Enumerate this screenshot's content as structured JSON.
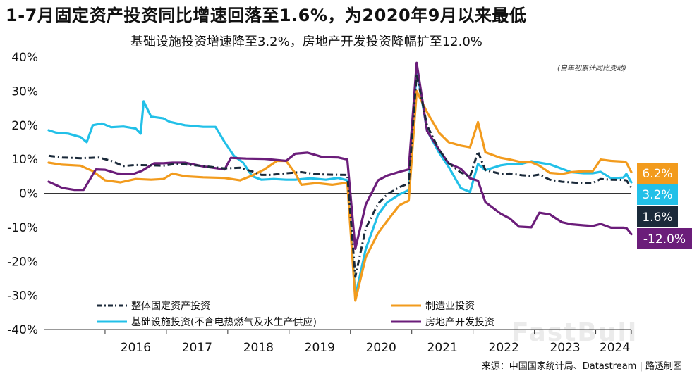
{
  "title": "1-7月固定资产投资同比增速回落至1.6%，为2020年9月以来最低",
  "subtitle": "基础设施投资增速降至3.2%，房地产开发投资降幅扩至12.0%",
  "note": "(自年初累计同比变动)",
  "source": "来源：中国国家统计局、Datastream | 路透制图",
  "watermark": "FastBull",
  "chart_data": {
    "type": "line",
    "y_unit": "%",
    "ylim": [
      -40,
      40
    ],
    "y_ticks": [
      "40%",
      "30%",
      "20%",
      "10%",
      "0%",
      "-10%",
      "-20%",
      "-30%",
      "-40%"
    ],
    "x_ticks": [
      "2016",
      "2017",
      "2018",
      "2019",
      "2020",
      "2021",
      "2022",
      "2023",
      "2024"
    ],
    "xlim": [
      2015.0,
      2024.58
    ],
    "grid": false,
    "legend_position": "bottom",
    "series": [
      {
        "name": "整体固定资产投资",
        "color": "#1b2a3a",
        "style": "dashdot",
        "end_label": "1.6%",
        "points": [
          [
            2015.08,
            11.0
          ],
          [
            2015.3,
            10.5
          ],
          [
            2015.6,
            10.3
          ],
          [
            2015.9,
            10.5
          ],
          [
            2016.1,
            9.5
          ],
          [
            2016.3,
            8.0
          ],
          [
            2016.5,
            8.3
          ],
          [
            2016.75,
            8.2
          ],
          [
            2016.95,
            8.1
          ],
          [
            2017.1,
            8.5
          ],
          [
            2017.3,
            8.5
          ],
          [
            2017.6,
            8.0
          ],
          [
            2017.95,
            7.3
          ],
          [
            2018.2,
            7.5
          ],
          [
            2018.4,
            6.4
          ],
          [
            2018.55,
            5.4
          ],
          [
            2018.7,
            5.4
          ],
          [
            2018.95,
            5.9
          ],
          [
            2019.2,
            6.2
          ],
          [
            2019.4,
            5.7
          ],
          [
            2019.6,
            5.5
          ],
          [
            2019.95,
            5.4
          ],
          [
            2020.08,
            -24.5
          ],
          [
            2020.25,
            -10.3
          ],
          [
            2020.45,
            -3.1
          ],
          [
            2020.6,
            -0.3
          ],
          [
            2020.8,
            1.8
          ],
          [
            2020.95,
            2.9
          ],
          [
            2021.08,
            35.0
          ],
          [
            2021.25,
            19.9
          ],
          [
            2021.45,
            12.6
          ],
          [
            2021.6,
            8.9
          ],
          [
            2021.8,
            6.1
          ],
          [
            2021.95,
            4.9
          ],
          [
            2022.08,
            12.2
          ],
          [
            2022.2,
            6.8
          ],
          [
            2022.45,
            5.7
          ],
          [
            2022.6,
            5.8
          ],
          [
            2022.8,
            5.3
          ],
          [
            2022.95,
            5.1
          ],
          [
            2023.08,
            5.5
          ],
          [
            2023.25,
            4.0
          ],
          [
            2023.45,
            3.4
          ],
          [
            2023.6,
            3.2
          ],
          [
            2023.8,
            2.9
          ],
          [
            2023.95,
            3.0
          ],
          [
            2024.08,
            4.2
          ],
          [
            2024.25,
            4.0
          ],
          [
            2024.45,
            3.9
          ],
          [
            2024.5,
            3.8
          ],
          [
            2024.58,
            1.6
          ]
        ]
      },
      {
        "name": "制造业投资",
        "color": "#f29b1d",
        "style": "solid",
        "end_label": "6.2%",
        "points": [
          [
            2015.08,
            9.0
          ],
          [
            2015.3,
            8.4
          ],
          [
            2015.6,
            8.1
          ],
          [
            2015.8,
            6.5
          ],
          [
            2016.0,
            3.8
          ],
          [
            2016.25,
            3.2
          ],
          [
            2016.5,
            4.2
          ],
          [
            2016.75,
            4.0
          ],
          [
            2016.95,
            4.2
          ],
          [
            2017.1,
            5.8
          ],
          [
            2017.3,
            5.0
          ],
          [
            2017.6,
            4.7
          ],
          [
            2017.95,
            4.5
          ],
          [
            2018.2,
            3.8
          ],
          [
            2018.4,
            5.2
          ],
          [
            2018.6,
            7.0
          ],
          [
            2018.8,
            9.5
          ],
          [
            2018.95,
            9.5
          ],
          [
            2019.1,
            5.9
          ],
          [
            2019.2,
            2.5
          ],
          [
            2019.45,
            3.0
          ],
          [
            2019.7,
            2.5
          ],
          [
            2019.95,
            3.1
          ],
          [
            2020.08,
            -31.5
          ],
          [
            2020.25,
            -18.8
          ],
          [
            2020.45,
            -11.7
          ],
          [
            2020.6,
            -8.1
          ],
          [
            2020.8,
            -3.5
          ],
          [
            2020.95,
            -2.2
          ],
          [
            2021.08,
            30.0
          ],
          [
            2021.25,
            23.8
          ],
          [
            2021.45,
            17.7
          ],
          [
            2021.6,
            15.0
          ],
          [
            2021.8,
            14.0
          ],
          [
            2021.95,
            13.5
          ],
          [
            2022.08,
            20.9
          ],
          [
            2022.2,
            12.0
          ],
          [
            2022.45,
            10.4
          ],
          [
            2022.6,
            9.9
          ],
          [
            2022.8,
            9.1
          ],
          [
            2022.95,
            9.1
          ],
          [
            2023.08,
            8.1
          ],
          [
            2023.25,
            6.0
          ],
          [
            2023.45,
            5.7
          ],
          [
            2023.6,
            6.2
          ],
          [
            2023.8,
            6.5
          ],
          [
            2023.95,
            6.5
          ],
          [
            2024.08,
            9.9
          ],
          [
            2024.25,
            9.5
          ],
          [
            2024.45,
            9.3
          ],
          [
            2024.5,
            9.0
          ],
          [
            2024.58,
            6.2
          ]
        ]
      },
      {
        "name": "基础设施投资(不含电热燃气及水生产供应)",
        "color": "#22c0e8",
        "style": "solid",
        "end_label": "3.2%",
        "points": [
          [
            2015.08,
            18.5
          ],
          [
            2015.2,
            17.8
          ],
          [
            2015.4,
            17.5
          ],
          [
            2015.6,
            16.5
          ],
          [
            2015.7,
            15.0
          ],
          [
            2015.8,
            20.0
          ],
          [
            2015.95,
            20.5
          ],
          [
            2016.1,
            19.4
          ],
          [
            2016.3,
            19.6
          ],
          [
            2016.5,
            19.0
          ],
          [
            2016.58,
            17.5
          ],
          [
            2016.63,
            27.0
          ],
          [
            2016.75,
            22.5
          ],
          [
            2016.95,
            22.0
          ],
          [
            2017.05,
            21.0
          ],
          [
            2017.3,
            20.0
          ],
          [
            2017.6,
            19.5
          ],
          [
            2017.8,
            19.5
          ],
          [
            2017.95,
            15.0
          ],
          [
            2018.1,
            11.0
          ],
          [
            2018.25,
            9.0
          ],
          [
            2018.4,
            5.0
          ],
          [
            2018.55,
            4.0
          ],
          [
            2018.75,
            4.2
          ],
          [
            2018.95,
            4.0
          ],
          [
            2019.1,
            4.0
          ],
          [
            2019.35,
            4.4
          ],
          [
            2019.6,
            4.0
          ],
          [
            2019.8,
            4.5
          ],
          [
            2019.95,
            3.8
          ],
          [
            2020.08,
            -30.3
          ],
          [
            2020.25,
            -16.4
          ],
          [
            2020.45,
            -6.3
          ],
          [
            2020.6,
            -2.7
          ],
          [
            2020.8,
            -0.3
          ],
          [
            2020.95,
            0.9
          ],
          [
            2021.08,
            36.6
          ],
          [
            2021.25,
            18.4
          ],
          [
            2021.45,
            11.8
          ],
          [
            2021.6,
            7.8
          ],
          [
            2021.8,
            1.5
          ],
          [
            2021.95,
            0.4
          ],
          [
            2022.08,
            8.6
          ],
          [
            2022.2,
            6.8
          ],
          [
            2022.45,
            8.2
          ],
          [
            2022.6,
            8.6
          ],
          [
            2022.8,
            8.7
          ],
          [
            2022.95,
            9.4
          ],
          [
            2023.08,
            9.0
          ],
          [
            2023.25,
            8.5
          ],
          [
            2023.45,
            7.2
          ],
          [
            2023.6,
            6.2
          ],
          [
            2023.8,
            5.9
          ],
          [
            2023.95,
            5.9
          ],
          [
            2024.08,
            6.3
          ],
          [
            2024.25,
            4.4
          ],
          [
            2024.45,
            4.6
          ],
          [
            2024.5,
            5.7
          ],
          [
            2024.58,
            3.2
          ]
        ]
      },
      {
        "name": "房地产开发投资",
        "color": "#6b1d7a",
        "style": "solid",
        "end_label": "-12.0%",
        "points": [
          [
            2015.08,
            3.4
          ],
          [
            2015.3,
            1.6
          ],
          [
            2015.5,
            1.0
          ],
          [
            2015.65,
            1.0
          ],
          [
            2015.85,
            7.0
          ],
          [
            2016.0,
            6.9
          ],
          [
            2016.2,
            5.8
          ],
          [
            2016.45,
            5.6
          ],
          [
            2016.6,
            6.6
          ],
          [
            2016.8,
            8.8
          ],
          [
            2016.95,
            8.8
          ],
          [
            2017.1,
            9.0
          ],
          [
            2017.3,
            9.0
          ],
          [
            2017.6,
            7.9
          ],
          [
            2017.95,
            7.0
          ],
          [
            2018.05,
            10.4
          ],
          [
            2018.3,
            10.2
          ],
          [
            2018.6,
            10.1
          ],
          [
            2018.95,
            9.5
          ],
          [
            2019.1,
            11.6
          ],
          [
            2019.3,
            11.9
          ],
          [
            2019.55,
            10.6
          ],
          [
            2019.8,
            10.5
          ],
          [
            2019.95,
            9.9
          ],
          [
            2020.08,
            -16.3
          ],
          [
            2020.25,
            -3.3
          ],
          [
            2020.45,
            3.8
          ],
          [
            2020.6,
            5.2
          ],
          [
            2020.8,
            6.3
          ],
          [
            2020.95,
            7.0
          ],
          [
            2021.08,
            38.3
          ],
          [
            2021.25,
            18.3
          ],
          [
            2021.45,
            12.7
          ],
          [
            2021.6,
            8.8
          ],
          [
            2021.8,
            7.2
          ],
          [
            2021.95,
            4.4
          ],
          [
            2022.08,
            3.7
          ],
          [
            2022.2,
            -2.6
          ],
          [
            2022.45,
            -6.0
          ],
          [
            2022.6,
            -7.4
          ],
          [
            2022.75,
            -9.8
          ],
          [
            2022.95,
            -10.0
          ],
          [
            2023.08,
            -5.7
          ],
          [
            2023.25,
            -6.2
          ],
          [
            2023.45,
            -8.5
          ],
          [
            2023.6,
            -9.1
          ],
          [
            2023.8,
            -9.4
          ],
          [
            2023.95,
            -9.6
          ],
          [
            2024.08,
            -9.0
          ],
          [
            2024.25,
            -10.1
          ],
          [
            2024.45,
            -10.1
          ],
          [
            2024.5,
            -10.2
          ],
          [
            2024.58,
            -12.0
          ]
        ]
      }
    ],
    "legend": [
      {
        "label": "整体固定资产投资",
        "series": 0
      },
      {
        "label": "制造业投资",
        "series": 1
      },
      {
        "label": "基础设施投资(不含电热燃气及水生产供应)",
        "series": 2
      },
      {
        "label": "房地产开发投资",
        "series": 3
      }
    ]
  }
}
